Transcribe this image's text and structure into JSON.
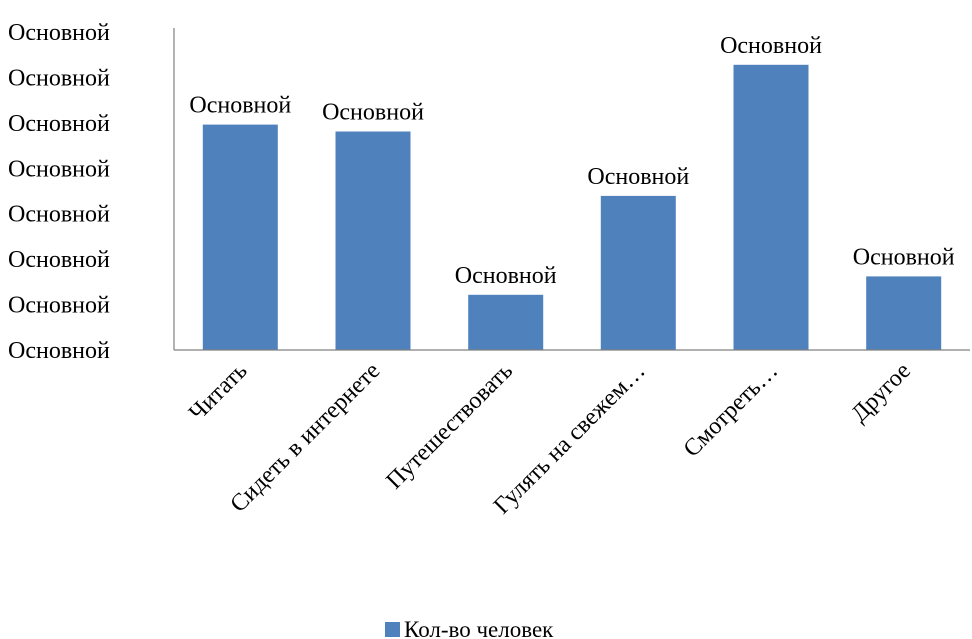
{
  "chart_data": {
    "type": "bar",
    "categories": [
      "Читать",
      "Сидеть в интернете",
      "Путешествовать",
      "Гулять на свежем…",
      "Смотреть…",
      "Другое"
    ],
    "series": [
      {
        "name": "Кол-во человек",
        "values": [
          4.9,
          4.75,
          1.2,
          3.35,
          6.2,
          1.6
        ],
        "data_labels": [
          "Основной",
          "Основной",
          "Основной",
          "Основной",
          "Основной",
          "Основной"
        ]
      }
    ],
    "y_tick_labels": [
      "Основной",
      "Основной",
      "Основной",
      "Основной",
      "Основной",
      "Основной",
      "Основной",
      "Основной"
    ],
    "ylim": [
      0,
      7
    ],
    "bar_color": "#4F81BD",
    "grid": false,
    "legend_position": "bottom"
  }
}
